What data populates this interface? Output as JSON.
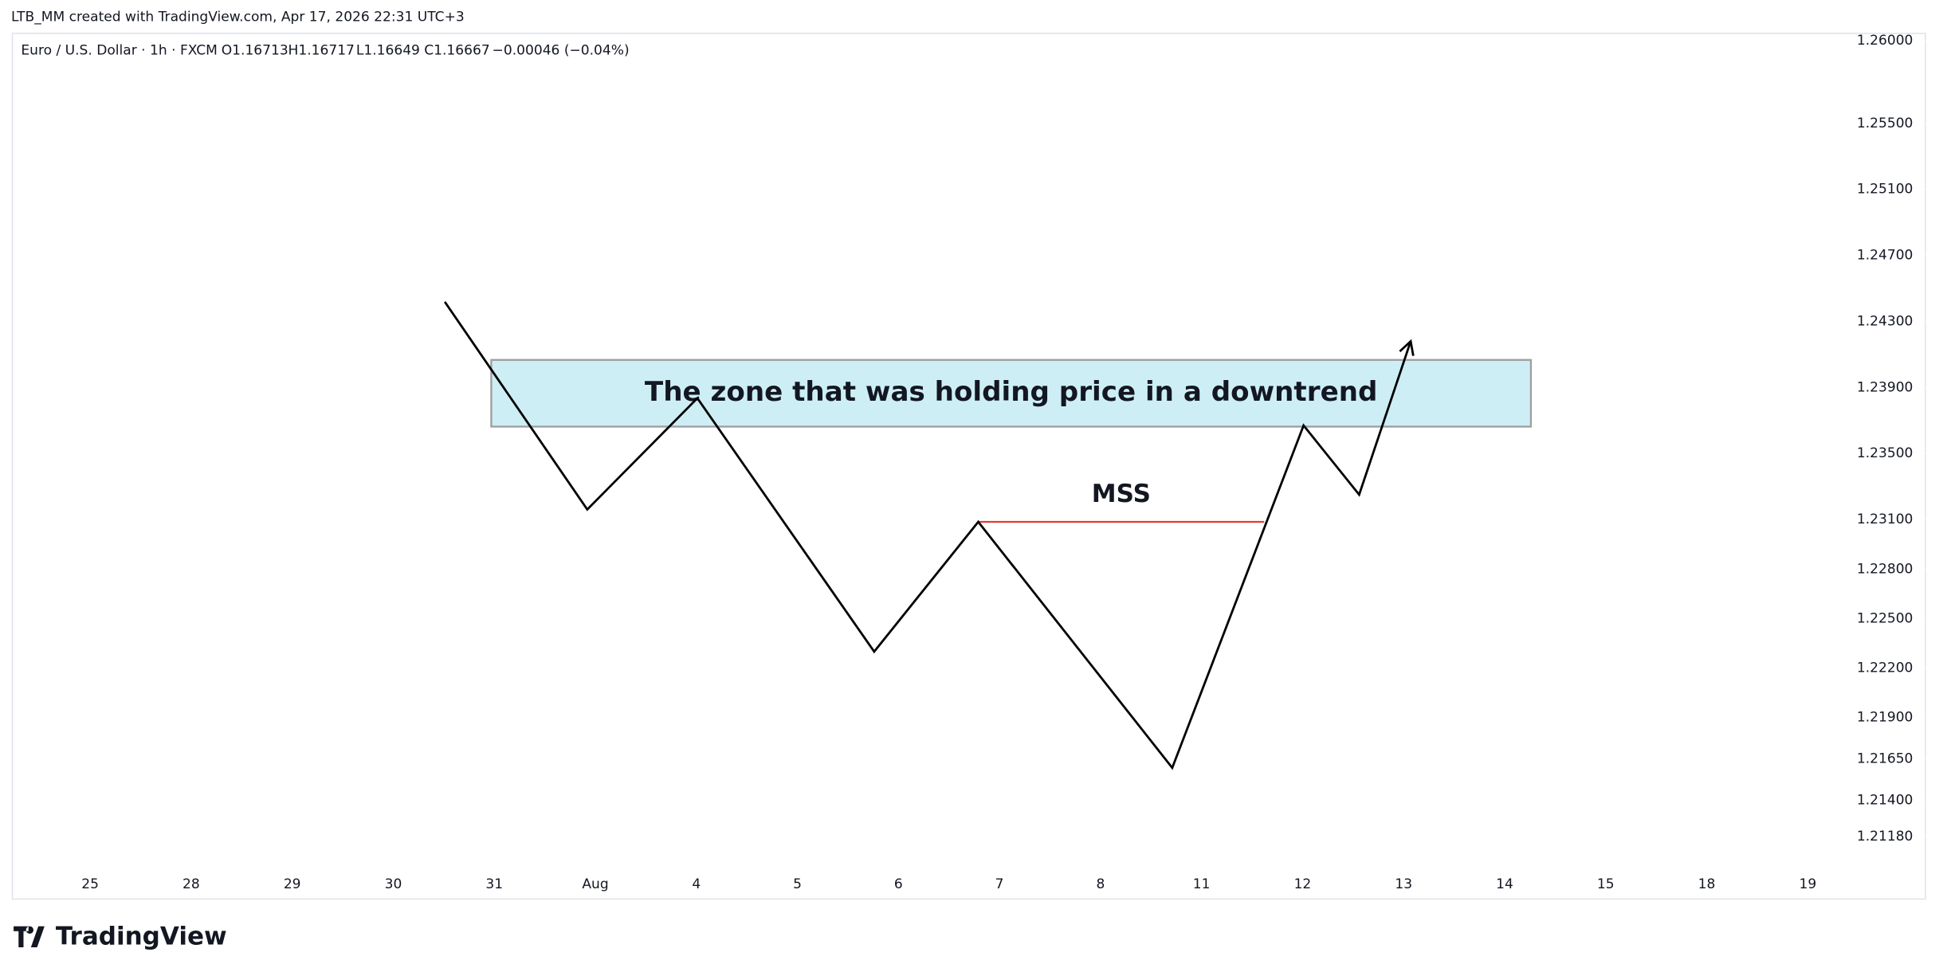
{
  "header": "LTB_MM created with TradingView.com, Apr 17, 2026 22:31 UTC+3",
  "legend": {
    "symbol": "Euro / U.S. Dollar · 1h · FXCM",
    "open": "O1.16713",
    "high": "H1.16717",
    "low": "L1.16649",
    "close": "C1.16667",
    "change": "−0.00046 (−0.04%)"
  },
  "footer": "TradingView",
  "chart_data": {
    "type": "line",
    "xlim": [
      -0.77,
      17.43
    ],
    "xticks": [
      {
        "value": 0,
        "label": "25"
      },
      {
        "value": 1,
        "label": "28"
      },
      {
        "value": 2,
        "label": "29"
      },
      {
        "value": 3,
        "label": "30"
      },
      {
        "value": 4,
        "label": "31"
      },
      {
        "value": 5,
        "label": "Aug"
      },
      {
        "value": 6,
        "label": "4"
      },
      {
        "value": 7,
        "label": "5"
      },
      {
        "value": 8,
        "label": "6"
      },
      {
        "value": 9,
        "label": "7"
      },
      {
        "value": 10,
        "label": "8"
      },
      {
        "value": 11,
        "label": "11"
      },
      {
        "value": 12,
        "label": "12"
      },
      {
        "value": 13,
        "label": "13"
      },
      {
        "value": 14,
        "label": "14"
      },
      {
        "value": 15,
        "label": "15"
      },
      {
        "value": 16,
        "label": "18"
      },
      {
        "value": 17,
        "label": "19"
      }
    ],
    "ylim": [
      1.20966,
      1.26045
    ],
    "yticks": [
      {
        "value": 1.26,
        "label": "1.26000"
      },
      {
        "value": 1.255,
        "label": "1.25500"
      },
      {
        "value": 1.251,
        "label": "1.25100"
      },
      {
        "value": 1.247,
        "label": "1.24700"
      },
      {
        "value": 1.243,
        "label": "1.24300"
      },
      {
        "value": 1.239,
        "label": "1.23900"
      },
      {
        "value": 1.235,
        "label": "1.23500"
      },
      {
        "value": 1.231,
        "label": "1.23100"
      },
      {
        "value": 1.228,
        "label": "1.22800"
      },
      {
        "value": 1.225,
        "label": "1.22500"
      },
      {
        "value": 1.222,
        "label": "1.22200"
      },
      {
        "value": 1.219,
        "label": "1.21900"
      },
      {
        "value": 1.2165,
        "label": "1.21650"
      },
      {
        "value": 1.214,
        "label": "1.21400"
      },
      {
        "value": 1.2118,
        "label": "1.21180"
      }
    ],
    "series": [
      {
        "color": "#000000",
        "x": [
          3.51,
          4.92,
          6.01,
          7.76,
          8.79,
          10.71,
          12.01,
          12.56,
          13.07
        ],
        "values": [
          1.24419,
          1.23161,
          1.23835,
          1.223,
          1.23086,
          1.21596,
          1.2367,
          1.23251,
          1.2418
        ]
      }
    ],
    "zone": {
      "x": [
        3.97,
        14.26
      ],
      "y": [
        1.23663,
        1.24067
      ],
      "color": "#cdeef5",
      "label": "The zone that was holding price in a downtrend"
    },
    "mss": {
      "x": [
        8.79,
        11.62
      ],
      "y": 1.23086,
      "color": "#e53935",
      "label": "MSS"
    }
  }
}
